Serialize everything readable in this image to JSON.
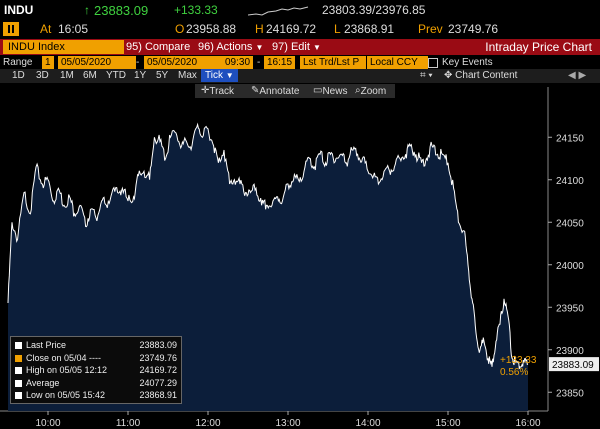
{
  "header": {
    "ticker": "INDU",
    "last": "23883.09",
    "change": "+133.33",
    "bid_ask": "23803.39/23976.85",
    "at_label": "At",
    "time": "16:05",
    "open_label": "O",
    "open": "23958.88",
    "high_label": "H",
    "high": "24169.72",
    "low_label": "L",
    "low": "23868.91",
    "prev_label": "Prev",
    "prev": "23749.76"
  },
  "toolbar": {
    "security": "INDU Index",
    "compare": "95) Compare",
    "actions": "96) Actions",
    "edit": "97) Edit",
    "title": "Intraday Price Chart"
  },
  "range": {
    "label": "Range",
    "num": "1",
    "start": "05/05/2020",
    "end": "05/05/2020",
    "time_from": "09:30",
    "time_to": "16:15",
    "price_type": "Lst Trd/Lst P",
    "currency": "Local CCY",
    "key_events": "Key Events"
  },
  "periods": [
    "1D",
    "3D",
    "1M",
    "6M",
    "YTD",
    "1Y",
    "5Y",
    "Max"
  ],
  "tick_label": "Tick",
  "chart_content": "Chart Content",
  "tools": [
    "Track",
    "Annotate",
    "News",
    "Zoom"
  ],
  "legend": [
    {
      "label": "Last Price",
      "value": "23883.09",
      "color": "#ffffff"
    },
    {
      "label": "Close on 05/04 ----",
      "value": "23749.76",
      "color": "#f0a000"
    },
    {
      "label": "High on 05/05 12:12",
      "value": "24169.72",
      "color": "#ffffff"
    },
    {
      "label": "Average",
      "value": "24077.29",
      "color": "#ffffff"
    },
    {
      "label": "Low on 05/05 15:42",
      "value": "23868.91",
      "color": "#ffffff"
    }
  ],
  "last_tag": "23883.09",
  "change_tag": "+133.33",
  "pct_tag": "0.56%",
  "chart_data": {
    "type": "area",
    "x_ticks": [
      "10:00",
      "11:00",
      "12:00",
      "13:00",
      "14:00",
      "15:00",
      "16:00"
    ],
    "x_label": "05 May 2020",
    "y_ticks": [
      23850,
      23900,
      23950,
      24000,
      24050,
      24100,
      24150
    ],
    "ylim": [
      23835,
      24195
    ],
    "x_range": [
      9.5,
      16.25
    ],
    "series": [
      {
        "color": "#ffffff",
        "fill": "#0c1e3a",
        "x": [
          9.5,
          9.55,
          9.62,
          9.7,
          9.78,
          9.85,
          9.93,
          10.0,
          10.07,
          10.13,
          10.2,
          10.27,
          10.33,
          10.4,
          10.47,
          10.53,
          10.6,
          10.67,
          10.73,
          10.8,
          10.87,
          10.93,
          11.0,
          11.07,
          11.13,
          11.2,
          11.27,
          11.33,
          11.4,
          11.47,
          11.53,
          11.6,
          11.67,
          11.73,
          11.8,
          11.87,
          11.93,
          12.0,
          12.07,
          12.13,
          12.2,
          12.27,
          12.33,
          12.4,
          12.47,
          12.53,
          12.6,
          12.67,
          12.73,
          12.8,
          12.87,
          12.93,
          13.0,
          13.07,
          13.13,
          13.2,
          13.27,
          13.33,
          13.4,
          13.47,
          13.53,
          13.6,
          13.67,
          13.73,
          13.8,
          13.87,
          13.93,
          14.0,
          14.07,
          14.13,
          14.2,
          14.27,
          14.33,
          14.4,
          14.47,
          14.53,
          14.6,
          14.67,
          14.73,
          14.8,
          14.87,
          14.93,
          15.0,
          15.07,
          15.13,
          15.2,
          15.25,
          15.3,
          15.35,
          15.4,
          15.45,
          15.5,
          15.55,
          15.6,
          15.65,
          15.7,
          15.75,
          15.8,
          15.85,
          15.9,
          15.95,
          16.0
        ],
        "y": [
          23955,
          24050,
          24030,
          24085,
          24060,
          24115,
          24095,
          24100,
          24075,
          24090,
          24070,
          24080,
          24060,
          24070,
          24045,
          24065,
          24055,
          24075,
          24070,
          24085,
          24085,
          24090,
          24075,
          24080,
          24105,
          24110,
          24100,
          24150,
          24145,
          24125,
          24150,
          24155,
          24140,
          24145,
          24140,
          24165,
          24150,
          24160,
          24140,
          24120,
          24135,
          24095,
          24100,
          24095,
          24085,
          24085,
          24090,
          24070,
          24070,
          24070,
          24080,
          24075,
          24095,
          24100,
          24100,
          24110,
          24125,
          24115,
          24130,
          24120,
          24130,
          24125,
          24130,
          24120,
          24135,
          24130,
          24125,
          24110,
          24105,
          24095,
          24110,
          24110,
          24115,
          24125,
          24130,
          24140,
          24130,
          24120,
          24125,
          24140,
          24130,
          24130,
          24120,
          24090,
          24050,
          24040,
          24000,
          23960,
          23920,
          23900,
          23910,
          23890,
          23880,
          23910,
          23930,
          23960,
          23940,
          23890,
          23885,
          23880,
          23885,
          23883
        ]
      }
    ]
  }
}
